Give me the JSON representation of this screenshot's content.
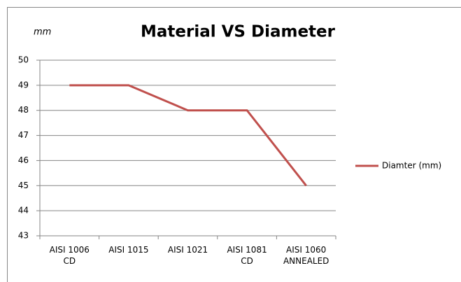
{
  "chart_data": {
    "type": "line",
    "title": "Material VS Diameter",
    "y_label": "mm",
    "categories": [
      "AISI 1006 CD",
      "AISI 1015",
      "AISI 1021",
      "AISI 1081 CD",
      "AISI 1060 ANNEALED"
    ],
    "series": [
      {
        "name": "Diamter (mm)",
        "color": "#c0504d",
        "values": [
          49,
          49,
          48,
          48,
          45
        ]
      }
    ],
    "ylim": [
      43,
      50
    ],
    "yticks": [
      43,
      44,
      45,
      46,
      47,
      48,
      49,
      50
    ],
    "grid": true,
    "legend": "right"
  }
}
